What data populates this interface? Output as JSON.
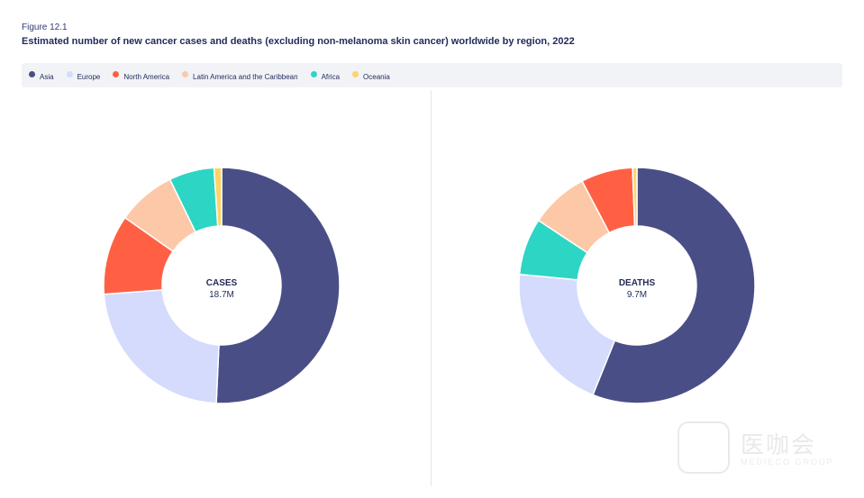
{
  "figure_label": "Figure 12.1",
  "title": "Estimated number of new cancer cases and deaths (excluding non-melanoma skin cancer) worldwide by region, 2022",
  "colors": {
    "Asia": "#4a4e87",
    "Europe": "#d4dbfc",
    "North America": "#ff6044",
    "Latin America and the Caribbean": "#fdc8a7",
    "Africa": "#2dd5c4",
    "Oceania": "#ffd466"
  },
  "legend": [
    {
      "label": "Asia",
      "icon": "circle-marker"
    },
    {
      "label": "Europe",
      "icon": "circle-marker"
    },
    {
      "label": "North America",
      "icon": "circle-marker"
    },
    {
      "label": "Latin America and the Caribbean",
      "icon": "circle-marker"
    },
    {
      "label": "Africa",
      "icon": "circle-marker"
    },
    {
      "label": "Oceania",
      "icon": "circle-marker"
    }
  ],
  "chart_data": [
    {
      "type": "pie",
      "subtype": "donut",
      "center_title": "CASES",
      "center_value": "18.7M",
      "categories": [
        "Asia",
        "Europe",
        "North America",
        "Latin America and the Caribbean",
        "Africa",
        "Oceania"
      ],
      "values": [
        49.2,
        22.4,
        10.6,
        7.8,
        6.0,
        1.0
      ],
      "unit": "percent",
      "start": "12 o'clock",
      "direction": "clockwise"
    },
    {
      "type": "pie",
      "subtype": "donut",
      "center_title": "DEATHS",
      "center_value": "9.7M",
      "categories": [
        "Asia",
        "Europe",
        "North America",
        "Latin America and the Caribbean",
        "Africa",
        "Oceania"
      ],
      "values": [
        56.1,
        20.4,
        7.1,
        8.0,
        7.8,
        0.6
      ],
      "unit": "percent",
      "start": "12 o'clock",
      "direction": "clockwise",
      "order": [
        "Asia",
        "Europe",
        "Africa",
        "Latin America and the Caribbean",
        "North America",
        "Oceania"
      ]
    }
  ],
  "watermark": {
    "text": "医咖会",
    "sub": "MEDIECO GROUP"
  }
}
